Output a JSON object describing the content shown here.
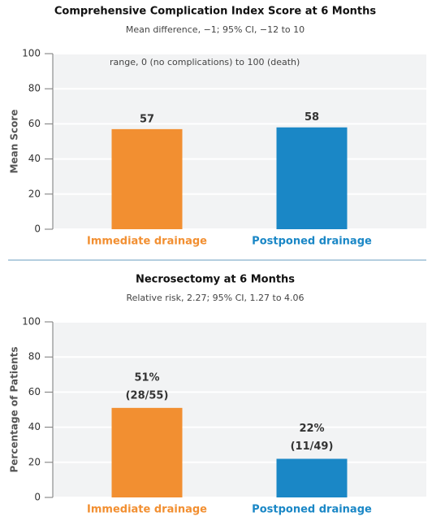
{
  "chart_data": [
    {
      "type": "bar",
      "title": "Comprehensive Complication Index Score at 6 Months",
      "subtitle": "Mean difference, −1; 95% CI, −12 to 10",
      "annotation": "range, 0 (no complications) to 100 (death)",
      "y_label": "Mean Score",
      "categories": [
        "Immediate drainage",
        "Postponed drainage"
      ],
      "values": [
        57,
        58
      ],
      "colors": [
        "#f28f31",
        "#1a87c6"
      ],
      "ylim": [
        0,
        100
      ],
      "yticks": [
        0,
        20,
        40,
        60,
        80,
        100
      ],
      "grid": true
    },
    {
      "type": "bar",
      "title": "Necrosectomy at 6 Months",
      "subtitle": "Relative risk, 2.27; 95% CI, 1.27 to 4.06",
      "y_label": "Percentage of Patients",
      "categories": [
        "Immediate drainage",
        "Postponed drainage"
      ],
      "values": [
        51,
        22
      ],
      "value_labels": [
        "51%",
        "22%"
      ],
      "value_label_counts": [
        "(28/55)",
        "(11/49)"
      ],
      "colors": [
        "#f28f31",
        "#1a87c6"
      ],
      "ylim": [
        0,
        100
      ],
      "yticks": [
        0,
        20,
        40,
        60,
        80,
        100
      ],
      "grid": true
    }
  ]
}
